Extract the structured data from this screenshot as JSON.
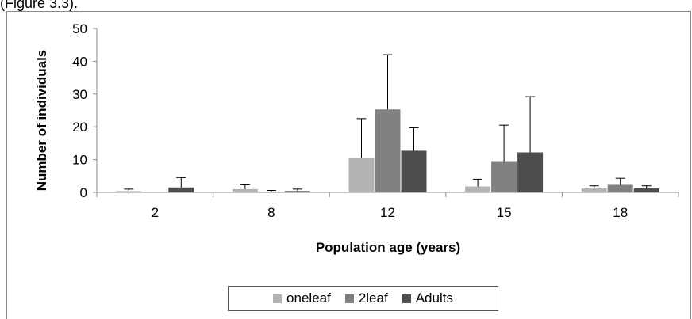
{
  "caption": "(Figure 3.3).",
  "chart_data": {
    "type": "bar",
    "xlabel": "Population age (years)",
    "ylabel": "Number of individuals",
    "categories": [
      "2",
      "8",
      "12",
      "15",
      "18"
    ],
    "ylim": [
      0,
      50
    ],
    "yticks": [
      0,
      10,
      20,
      30,
      40,
      50
    ],
    "grid": false,
    "legend_position": "bottom",
    "series": [
      {
        "name": "oneleaf",
        "color": "#b3b3b3",
        "values": [
          0.4,
          1.0,
          10.5,
          1.8,
          1.2
        ],
        "error": [
          0.6,
          1.3,
          12.0,
          2.2,
          0.8
        ]
      },
      {
        "name": "2leaf",
        "color": "#808080",
        "values": [
          0.0,
          0.1,
          25.3,
          9.3,
          2.3
        ],
        "error": [
          0.0,
          0.5,
          16.7,
          11.2,
          2.0
        ]
      },
      {
        "name": "Adults",
        "color": "#4d4d4d",
        "values": [
          1.5,
          0.4,
          12.7,
          12.2,
          1.2
        ],
        "error": [
          3.0,
          0.6,
          7.0,
          17.0,
          0.8
        ]
      }
    ]
  }
}
